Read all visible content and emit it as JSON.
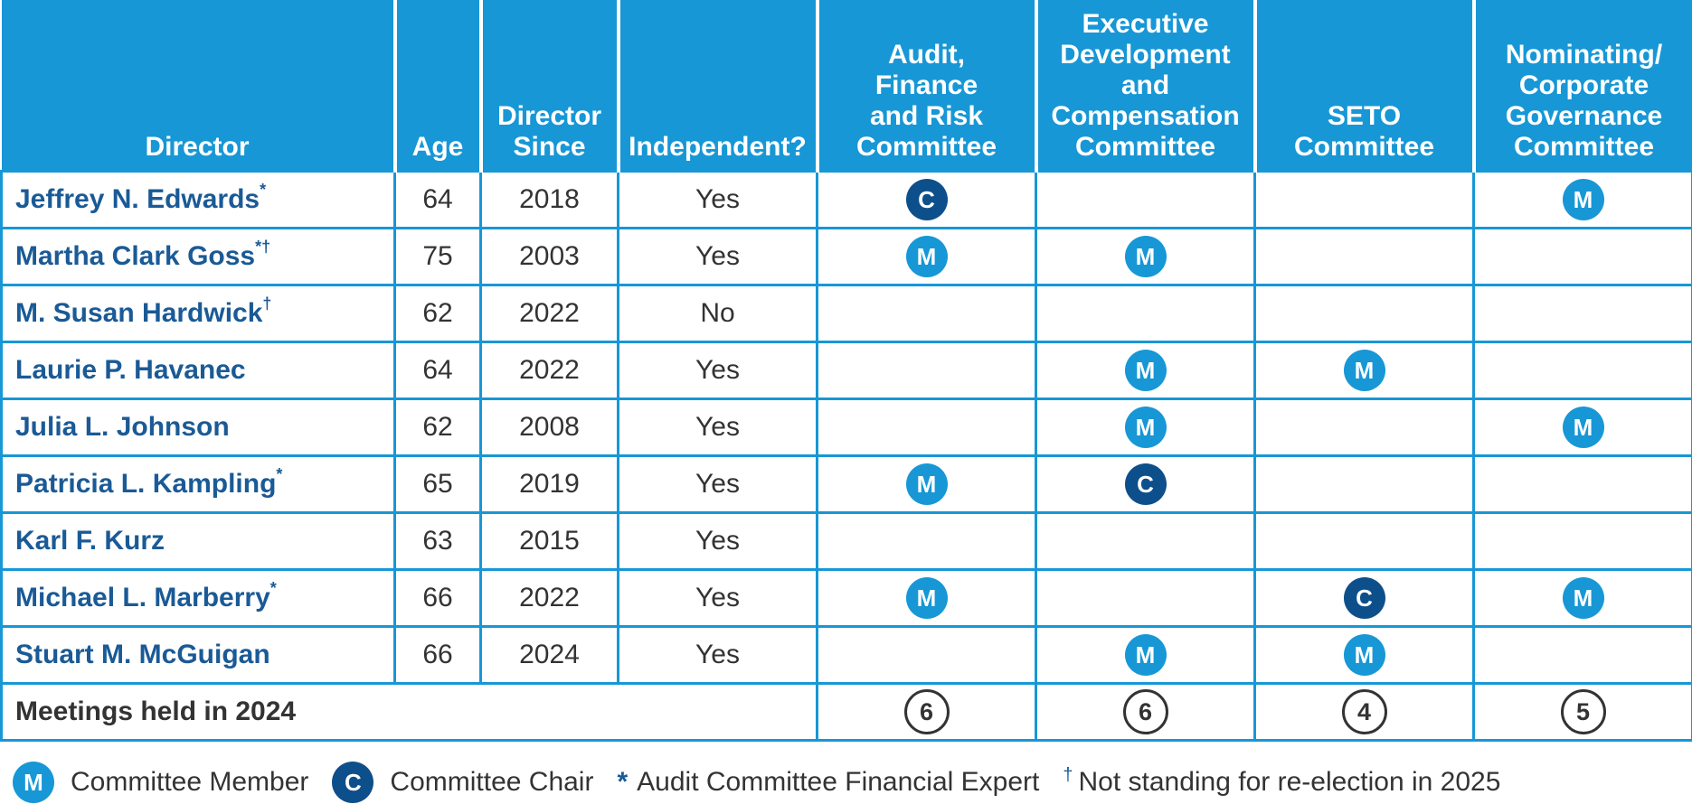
{
  "headers": {
    "director": "Director",
    "age": "Age",
    "since_line1": "Director",
    "since_line2": "Since",
    "independent": "Independent?",
    "committees": [
      [
        "Audit,",
        "Finance",
        "and Risk",
        "Committee"
      ],
      [
        "Executive",
        "Development",
        "and",
        "Compensation",
        "Committee"
      ],
      [
        "SETO",
        "Committee"
      ],
      [
        "Nominating/",
        "Corporate",
        "Governance",
        "Committee"
      ]
    ]
  },
  "directors": [
    {
      "name": "Jeffrey N. Edwards",
      "mark": "*",
      "age": "64",
      "since": "2018",
      "independent": "Yes",
      "roles": [
        "C",
        "",
        "",
        "M"
      ]
    },
    {
      "name": "Martha Clark Goss",
      "mark": "*†",
      "age": "75",
      "since": "2003",
      "independent": "Yes",
      "roles": [
        "M",
        "M",
        "",
        ""
      ]
    },
    {
      "name": "M. Susan Hardwick",
      "mark": "†",
      "age": "62",
      "since": "2022",
      "independent": "No",
      "roles": [
        "",
        "",
        "",
        ""
      ]
    },
    {
      "name": "Laurie P. Havanec",
      "mark": "",
      "age": "64",
      "since": "2022",
      "independent": "Yes",
      "roles": [
        "",
        "M",
        "M",
        ""
      ]
    },
    {
      "name": "Julia L. Johnson",
      "mark": "",
      "age": "62",
      "since": "2008",
      "independent": "Yes",
      "roles": [
        "",
        "M",
        "",
        "M"
      ]
    },
    {
      "name": "Patricia L. Kampling",
      "mark": "*",
      "age": "65",
      "since": "2019",
      "independent": "Yes",
      "roles": [
        "M",
        "C",
        "",
        ""
      ]
    },
    {
      "name": "Karl F. Kurz",
      "mark": "",
      "age": "63",
      "since": "2015",
      "independent": "Yes",
      "roles": [
        "",
        "",
        "",
        ""
      ]
    },
    {
      "name": "Michael L. Marberry",
      "mark": "*",
      "age": "66",
      "since": "2022",
      "independent": "Yes",
      "roles": [
        "M",
        "",
        "C",
        "M"
      ]
    },
    {
      "name": "Stuart M. McGuigan",
      "mark": "",
      "age": "66",
      "since": "2024",
      "independent": "Yes",
      "roles": [
        "",
        "M",
        "M",
        ""
      ]
    }
  ],
  "meetings": {
    "label": "Meetings held in 2024",
    "counts": [
      "6",
      "6",
      "4",
      "5"
    ]
  },
  "legend": {
    "member_symbol": "M",
    "member_label": "Committee Member",
    "chair_symbol": "C",
    "chair_label": "Committee Chair",
    "expert_symbol": "*",
    "expert_label": "Audit Committee Financial Expert",
    "dagger_symbol": "†",
    "dagger_label": "Not standing for re-election in 2025"
  },
  "colors": {
    "header_blue": "#1797d6",
    "member_blue": "#1797d6",
    "chair_navy": "#0d4f8b",
    "name_blue": "#1a5a96"
  }
}
